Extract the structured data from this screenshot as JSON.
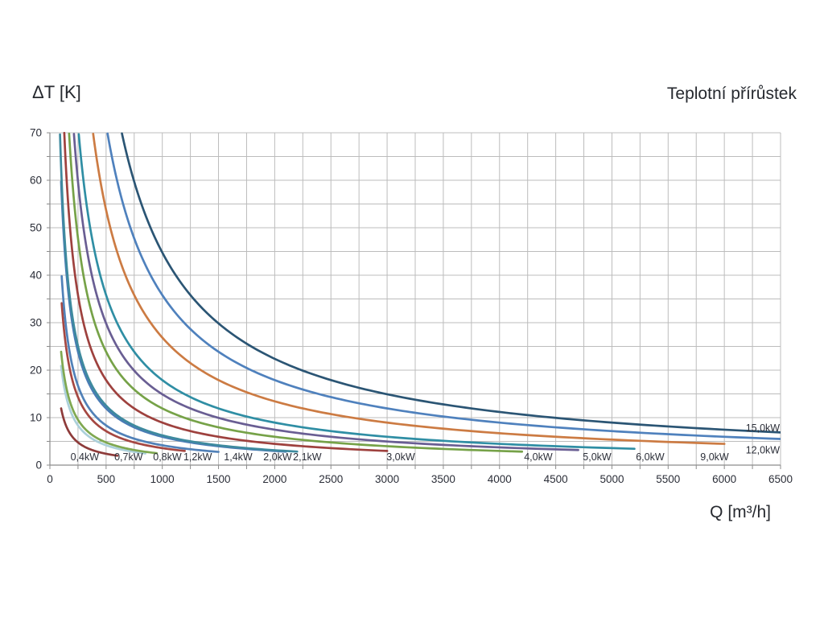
{
  "chart_data": {
    "type": "line",
    "title": "Teplotní přírůstek",
    "ylabel": "ΔT [K]",
    "xlabel": "Q [m³/h]",
    "formula": "deltaT_K = coefficient * power_kW * 1000 / Q_m3h",
    "coefficient": 2.985,
    "x_axis": {
      "min": 0,
      "max": 6500,
      "gridline_step": 250,
      "label_step": 500,
      "tick_labels": [
        "0",
        "500",
        "1000",
        "1500",
        "2000",
        "2500",
        "3000",
        "3500",
        "4000",
        "4500",
        "5000",
        "5500",
        "6000",
        "6500"
      ]
    },
    "y_axis": {
      "min": 0,
      "max": 70,
      "gridline_step": 5,
      "label_step": 10,
      "tick_labels": [
        "0",
        "10",
        "20",
        "30",
        "40",
        "50",
        "60",
        "70"
      ]
    },
    "grid": true,
    "legend_position": "curve-end-labels",
    "colors": {
      "grid": "#bcbcbc",
      "axis": "#8c8c8c",
      "text": "#2b2e38",
      "background": "#ffffff"
    },
    "series": [
      {
        "label": "0,4kW",
        "power_kw": 0.4,
        "q_min": 100,
        "q_max": 600,
        "color": "#8e3b3a",
        "label_q": 310,
        "label_dt": 1.7
      },
      {
        "label": "0,7kW",
        "power_kw": 0.7,
        "q_min": 100,
        "q_max": 850,
        "color": "#abd0da",
        "label_q": 700,
        "label_dt": 1.7
      },
      {
        "label": "0,8kW",
        "power_kw": 0.8,
        "q_min": 100,
        "q_max": 950,
        "color": "#7fa851",
        "label_q": 1045,
        "label_dt": 1.7
      },
      {
        "label": "1,2kW",
        "power_kw": 1.2,
        "q_min": 105,
        "q_max": 1200,
        "color": "#a54742",
        "label_q": 1315,
        "label_dt": 1.7
      },
      {
        "label": "1,4kW",
        "power_kw": 1.4,
        "q_min": 105,
        "q_max": 1500,
        "color": "#5181b8",
        "label_q": 1675,
        "label_dt": 1.7
      },
      {
        "label": "2,0kW",
        "power_kw": 2.0,
        "q_min": 100,
        "q_max": 2100,
        "color": "#4a7cb5",
        "label_q": 2026,
        "label_dt": 1.7
      },
      {
        "label": "2,1kW",
        "power_kw": 2.1,
        "q_min": 90,
        "q_max": 2200,
        "color": "#3e8a9e",
        "label_q": 2290,
        "label_dt": 1.7
      },
      {
        "label": "3,0kW",
        "power_kw": 3.0,
        "q_min": 128,
        "q_max": 3000,
        "color": "#9e413e",
        "label_q": 3121,
        "label_dt": 1.7
      },
      {
        "label": "4,0kW",
        "power_kw": 4.0,
        "q_min": 171,
        "q_max": 4200,
        "color": "#76a248",
        "label_q": 4345,
        "label_dt": 1.7
      },
      {
        "label": "5,0kW",
        "power_kw": 5.0,
        "q_min": 214,
        "q_max": 4700,
        "color": "#695e93",
        "label_q": 4868,
        "label_dt": 1.7
      },
      {
        "label": "6,0kW",
        "power_kw": 6.0,
        "q_min": 257,
        "q_max": 5200,
        "color": "#2f8ea4",
        "label_q": 5340,
        "label_dt": 1.7
      },
      {
        "label": "9,0kW",
        "power_kw": 9.0,
        "q_min": 385,
        "q_max": 6000,
        "color": "#cc7b43",
        "label_q": 5913,
        "label_dt": 1.7
      },
      {
        "label": "12,0kW",
        "power_kw": 12.0,
        "q_min": 513,
        "q_max": 6500,
        "color": "#4f81bd",
        "label_q": 6342,
        "label_dt": 3.1
      },
      {
        "label": "15,0kW",
        "power_kw": 15.0,
        "q_min": 641,
        "q_max": 6500,
        "color": "#2b5574",
        "label_q": 6342,
        "label_dt": 7.8
      }
    ]
  }
}
